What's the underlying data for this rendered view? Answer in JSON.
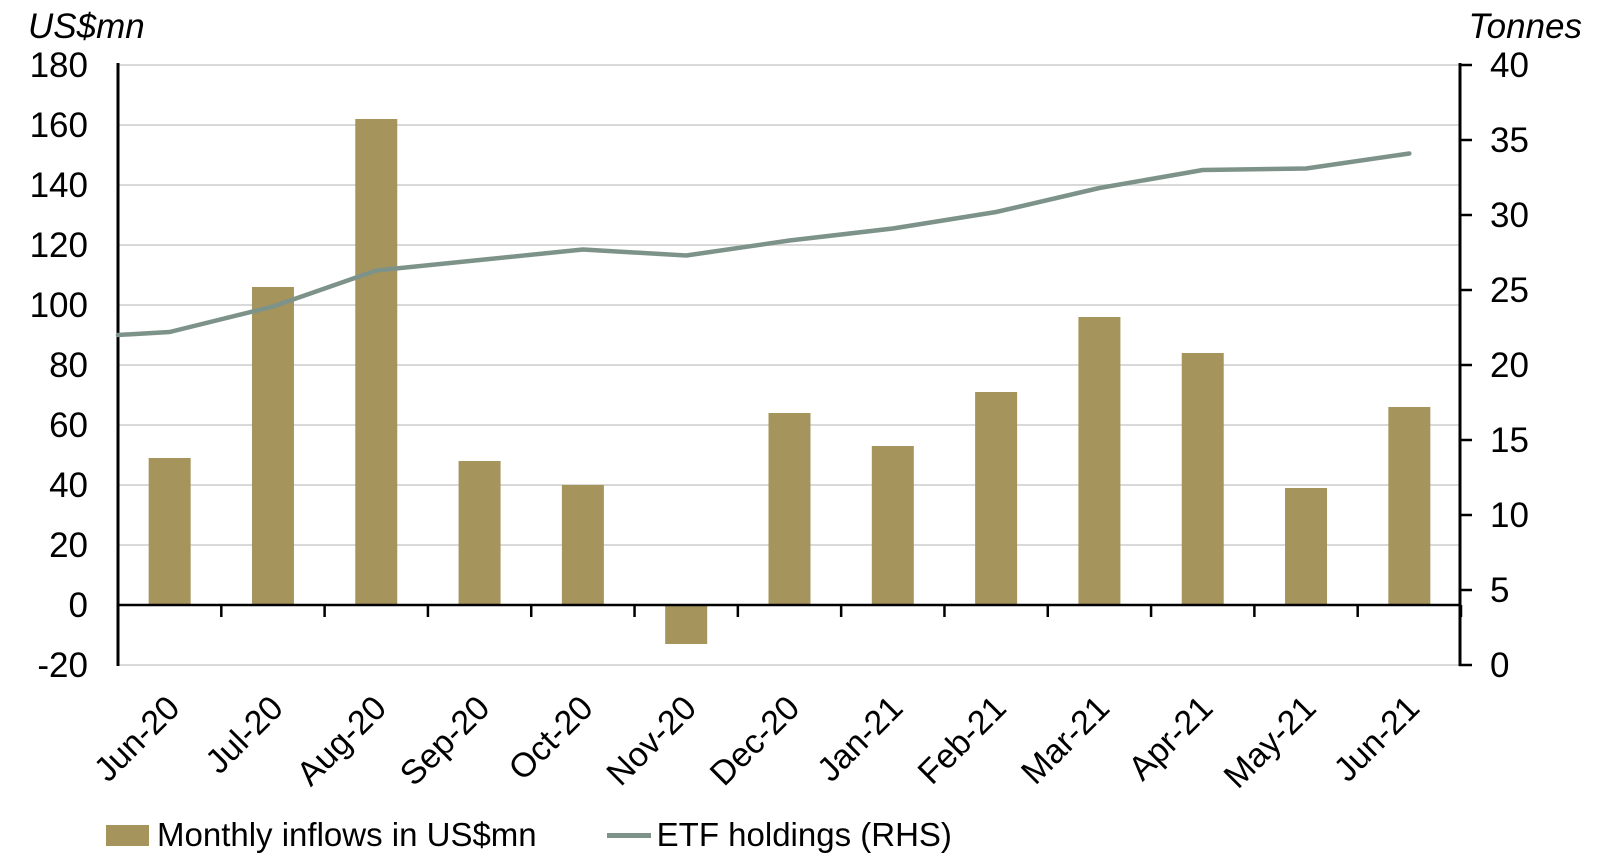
{
  "chart_data": {
    "type": "combo",
    "title": "",
    "categories": [
      "Jun-20",
      "Jul-20",
      "Aug-20",
      "Sep-20",
      "Oct-20",
      "Nov-20",
      "Dec-20",
      "Jan-21",
      "Feb-21",
      "Mar-21",
      "Apr-21",
      "May-21",
      "Jun-21"
    ],
    "series": [
      {
        "name": "Monthly inflows in US$mn",
        "type": "bar",
        "axis": "left",
        "values": [
          49,
          106,
          162,
          48,
          40,
          -13,
          64,
          53,
          71,
          96,
          84,
          39,
          66
        ]
      },
      {
        "name": "ETF holdings (RHS)",
        "type": "line",
        "axis": "right",
        "values": [
          22.2,
          23.9,
          26.3,
          27.0,
          27.7,
          27.3,
          28.3,
          29.1,
          30.2,
          31.8,
          33.0,
          33.1,
          34.1
        ],
        "edge_start_value": 22.0
      }
    ],
    "left_axis": {
      "title": "US$mn",
      "min": -20,
      "max": 180,
      "step": 20,
      "ticks": [
        "180",
        "160",
        "140",
        "120",
        "100",
        "80",
        "60",
        "40",
        "20",
        "0",
        "-20"
      ]
    },
    "right_axis": {
      "title": "Tonnes",
      "min": 0,
      "max": 40,
      "step": 5,
      "ticks": [
        "40",
        "35",
        "30",
        "25",
        "20",
        "15",
        "10",
        "5",
        "0"
      ]
    },
    "legend": [
      {
        "label": "Monthly inflows in US$mn",
        "swatch": "bar"
      },
      {
        "label": "ETF holdings (RHS)",
        "swatch": "line"
      }
    ],
    "colors": {
      "bar": "#A6945D",
      "line": "#7D938A",
      "gridline": "#D9D9D9",
      "axis": "#000000",
      "text": "#000000",
      "background": "#FFFFFF"
    },
    "layout": {
      "grid": "horizontal",
      "legend_position": "bottom-left",
      "x_label_rotation": -45,
      "line_extends_to_left_axis": true
    }
  }
}
